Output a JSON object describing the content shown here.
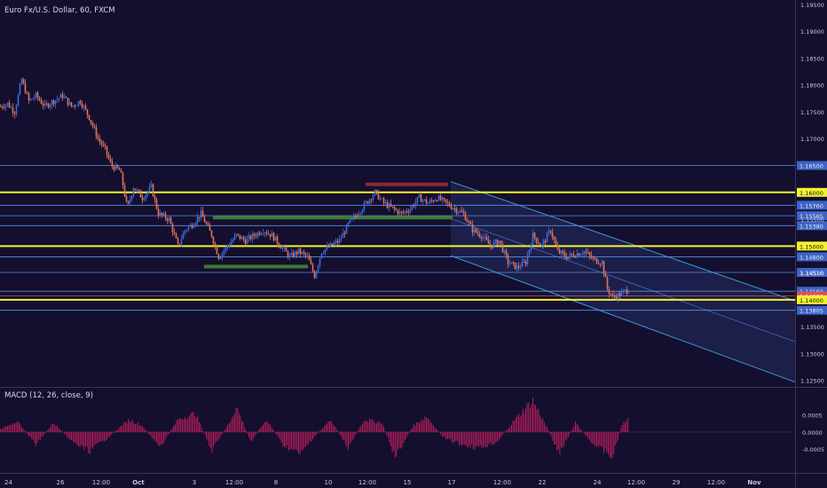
{
  "main_title": "Euro Fx/U.S. Dollar, 60, FXCM",
  "macd_title": "MACD (12, 26, close, 9)",
  "colors": {
    "background": "#140f2e",
    "up_candle": "#3e6be0",
    "down_candle": "#e0765a",
    "yellow_level": "#f2f230",
    "blue_level": "#5d8fe0",
    "channel": "#3a9ad8",
    "green_zone": "#3f7a30",
    "red_zone": "#8a2a3a",
    "macd_hist": "#b01e5a",
    "axis_text": "#c9c9d6",
    "separator": "#3a3555"
  },
  "chart_data": [
    {
      "type": "candlestick",
      "title": "Euro Fx/U.S. Dollar, 60, FXCM",
      "ylim": [
        1.1238,
        1.1958
      ],
      "price_ticks": [
        "1.19500",
        "1.19000",
        "1.18500",
        "1.18000",
        "1.17500",
        "1.17000",
        "1.15500",
        "1.14500",
        "1.13500",
        "1.13000",
        "1.12500"
      ],
      "x_labels": [
        "24",
        "26",
        "12:00",
        "Oct",
        "3",
        "12:00",
        "8",
        "10",
        "12:00",
        "15",
        "17",
        "12:00",
        "22",
        "24",
        "12:00",
        "29",
        "12:00",
        "Nov"
      ],
      "close_path": [
        [
          0,
          1.176
        ],
        [
          8,
          1.1765
        ],
        [
          16,
          1.175
        ],
        [
          24,
          1.181
        ],
        [
          32,
          1.177
        ],
        [
          40,
          1.178
        ],
        [
          50,
          1.176
        ],
        [
          60,
          1.177
        ],
        [
          70,
          1.178
        ],
        [
          80,
          1.176
        ],
        [
          90,
          1.177
        ],
        [
          100,
          1.174
        ],
        [
          110,
          1.17
        ],
        [
          118,
          1.168
        ],
        [
          125,
          1.165
        ],
        [
          135,
          1.164
        ],
        [
          143,
          1.157
        ],
        [
          150,
          1.161
        ],
        [
          160,
          1.159
        ],
        [
          170,
          1.161
        ],
        [
          178,
          1.156
        ],
        [
          190,
          1.155
        ],
        [
          200,
          1.15
        ],
        [
          208,
          1.153
        ],
        [
          216,
          1.154
        ],
        [
          226,
          1.156
        ],
        [
          238,
          1.152
        ],
        [
          246,
          1.148
        ],
        [
          256,
          1.15
        ],
        [
          266,
          1.152
        ],
        [
          276,
          1.151
        ],
        [
          286,
          1.152
        ],
        [
          296,
          1.153
        ],
        [
          306,
          1.152
        ],
        [
          316,
          1.15
        ],
        [
          326,
          1.148
        ],
        [
          336,
          1.149
        ],
        [
          346,
          1.148
        ],
        [
          354,
          1.1445
        ],
        [
          362,
          1.149
        ],
        [
          372,
          1.15
        ],
        [
          382,
          1.151
        ],
        [
          392,
          1.154
        ],
        [
          402,
          1.156
        ],
        [
          412,
          1.158
        ],
        [
          422,
          1.16
        ],
        [
          432,
          1.158
        ],
        [
          442,
          1.157
        ],
        [
          452,
          1.156
        ],
        [
          462,
          1.157
        ],
        [
          472,
          1.159
        ],
        [
          482,
          1.158
        ],
        [
          492,
          1.159
        ],
        [
          502,
          1.158
        ],
        [
          512,
          1.157
        ],
        [
          522,
          1.156
        ],
        [
          532,
          1.153
        ],
        [
          542,
          1.152
        ],
        [
          552,
          1.15
        ],
        [
          562,
          1.151
        ],
        [
          572,
          1.147
        ],
        [
          582,
          1.146
        ],
        [
          592,
          1.147
        ],
        [
          600,
          1.152
        ],
        [
          610,
          1.15
        ],
        [
          620,
          1.153
        ],
        [
          628,
          1.149
        ],
        [
          638,
          1.148
        ],
        [
          648,
          1.1485
        ],
        [
          658,
          1.149
        ],
        [
          668,
          1.1475
        ],
        [
          678,
          1.147
        ],
        [
          684,
          1.142
        ],
        [
          690,
          1.1405
        ],
        [
          698,
          1.141
        ],
        [
          708,
          1.142
        ]
      ],
      "horizontal_levels": [
        {
          "price": 1.165,
          "label": "1.16500",
          "style": "blue"
        },
        {
          "price": 1.16,
          "label": "1.16000",
          "style": "yellow"
        },
        {
          "price": 1.1576,
          "label": "1.15760",
          "style": "blue"
        },
        {
          "price": 1.15565,
          "label": "1.15565",
          "style": "blue"
        },
        {
          "price": 1.1538,
          "label": "1.15380",
          "style": "blue"
        },
        {
          "price": 1.15,
          "label": "1.15000",
          "style": "yellow"
        },
        {
          "price": 1.148,
          "label": "1.14800",
          "style": "blue"
        },
        {
          "price": 1.1451,
          "label": "1.14510",
          "style": "blue"
        },
        {
          "price": 1.1416,
          "label": "1.14160",
          "style": "blue"
        },
        {
          "price": 1.1407,
          "label": "1.14070",
          "style": "red"
        },
        {
          "price": 1.14,
          "label": "1.14000",
          "style": "yellow"
        },
        {
          "price": 1.13805,
          "label": "1.13805",
          "style": "blue"
        }
      ],
      "support_resistance_zones": [
        {
          "from": 240,
          "to": 510,
          "price": 1.1553,
          "color": "green"
        },
        {
          "from": 230,
          "to": 347,
          "price": 1.1462,
          "color": "green"
        },
        {
          "from": 412,
          "to": 505,
          "price": 1.1615,
          "color": "red"
        }
      ],
      "channel": {
        "from": [
          508,
          1.162
        ],
        "outer_to": [
          896,
          1.1398
        ],
        "lower_from": [
          508,
          1.1482
        ],
        "lower_to": [
          896,
          1.1247
        ],
        "mid_from": [
          508,
          1.1551
        ],
        "mid_to": [
          896,
          1.1322
        ]
      }
    },
    {
      "type": "bar",
      "title": "MACD (12, 26, close, 9)",
      "ylim": [
        -0.0012,
        0.0013
      ],
      "y_ticks": [
        "0.0005",
        "0.0000",
        "-0.0005"
      ],
      "histogram_envelope": [
        [
          0,
          0.0001
        ],
        [
          20,
          0.0003
        ],
        [
          40,
          -0.0004
        ],
        [
          60,
          0.0003
        ],
        [
          80,
          -0.0003
        ],
        [
          100,
          -0.0006
        ],
        [
          120,
          -0.0002
        ],
        [
          145,
          0.0004
        ],
        [
          160,
          0.0002
        ],
        [
          180,
          -0.0005
        ],
        [
          200,
          0.0004
        ],
        [
          220,
          0.0006
        ],
        [
          238,
          -0.0006
        ],
        [
          258,
          0.0003
        ],
        [
          266,
          0.0008
        ],
        [
          282,
          -0.0003
        ],
        [
          300,
          0.0004
        ],
        [
          318,
          -0.0004
        ],
        [
          338,
          -0.0007
        ],
        [
          352,
          -0.0002
        ],
        [
          372,
          0.0004
        ],
        [
          392,
          -0.0005
        ],
        [
          410,
          0.0004
        ],
        [
          430,
          0.0003
        ],
        [
          445,
          -0.0008
        ],
        [
          465,
          0.0002
        ],
        [
          480,
          0.0005
        ],
        [
          500,
          -0.0002
        ],
        [
          520,
          -0.0004
        ],
        [
          540,
          -0.0005
        ],
        [
          560,
          -0.0003
        ],
        [
          580,
          0.0004
        ],
        [
          600,
          0.001
        ],
        [
          615,
          0.0002
        ],
        [
          630,
          -0.0007
        ],
        [
          648,
          0.0003
        ],
        [
          665,
          -0.0003
        ],
        [
          690,
          -0.0008
        ],
        [
          700,
          0.0002
        ],
        [
          708,
          0.0005
        ]
      ]
    }
  ]
}
